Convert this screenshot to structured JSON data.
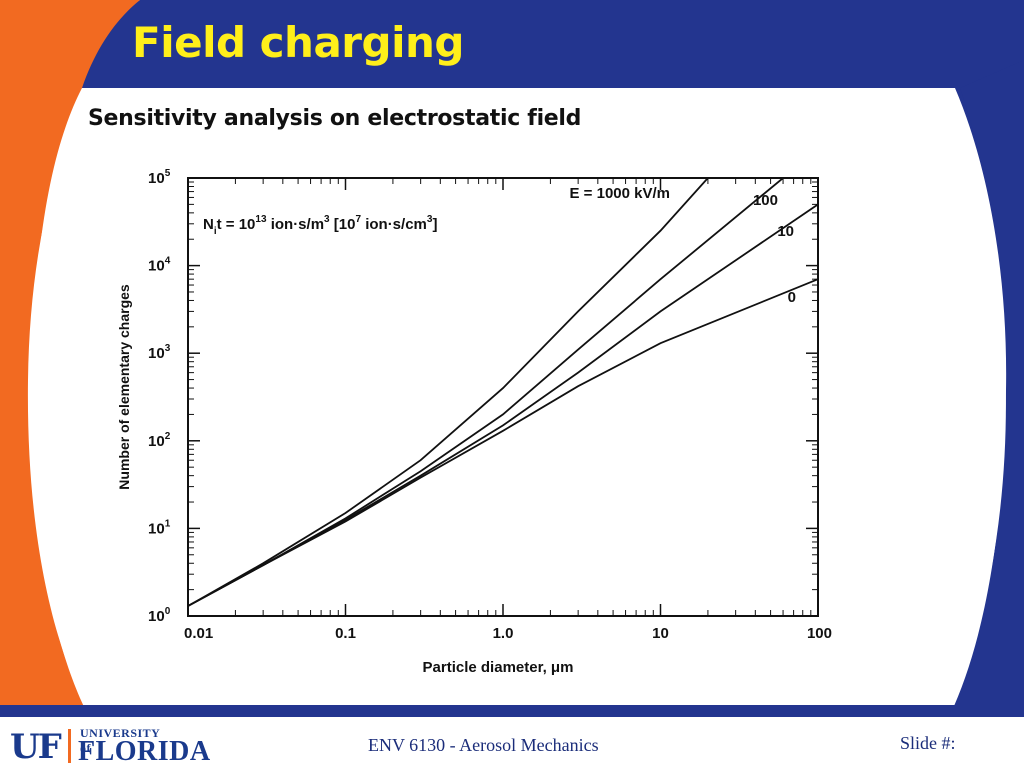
{
  "slide": {
    "title": "Field charging",
    "subtitle": "Sensitivity analysis on electrostatic field"
  },
  "footer": {
    "course": "ENV 6130 - Aerosol Mechanics",
    "slide_label": "Slide #:",
    "logo_uf": "UF",
    "logo_university": "UNIVERSITY of",
    "logo_florida": "FLORIDA"
  },
  "colors": {
    "header_blue": "#23358f",
    "title_yellow": "#ffef1a",
    "accent_orange": "#f26a21",
    "footer_blue": "#1b2d7a"
  },
  "chart_data": {
    "type": "line",
    "x_scale": "log",
    "y_scale": "log",
    "xlim": [
      0.01,
      100
    ],
    "ylim": [
      1,
      100000
    ],
    "x_ticks": [
      {
        "value": 0.01,
        "label": "0.01"
      },
      {
        "value": 0.1,
        "label": "0.1"
      },
      {
        "value": 1,
        "label": "1.0"
      },
      {
        "value": 10,
        "label": "10"
      },
      {
        "value": 100,
        "label": "100"
      }
    ],
    "y_ticks": [
      {
        "value": 1,
        "base": "10",
        "exp": "0"
      },
      {
        "value": 10,
        "base": "10",
        "exp": "1"
      },
      {
        "value": 100,
        "base": "10",
        "exp": "2"
      },
      {
        "value": 1000,
        "base": "10",
        "exp": "3"
      },
      {
        "value": 10000,
        "base": "10",
        "exp": "4"
      },
      {
        "value": 100000,
        "base": "10",
        "exp": "5"
      }
    ],
    "xlabel": "Particle diameter, μm",
    "ylabel": "Number of elementary charges",
    "annotation": {
      "pre": "N",
      "sub": "i",
      "mid": "t = 10",
      "sup1": "13",
      "mid2": " ion·s/m",
      "sup2": "3",
      "mid3": " [10",
      "sup3": "7",
      "mid4": " ion·s/cm",
      "sup4": "3",
      "post": "]"
    },
    "grid": false,
    "series": [
      {
        "name": "E = 1000 kV/m",
        "x": [
          0.01,
          0.03,
          0.1,
          0.3,
          1,
          3,
          10,
          20
        ],
        "y": [
          1.3,
          4,
          15,
          60,
          400,
          3000,
          25000,
          100000
        ]
      },
      {
        "name": "100",
        "x": [
          0.01,
          0.03,
          0.1,
          0.3,
          1,
          3,
          10,
          60
        ],
        "y": [
          1.3,
          3.8,
          13,
          45,
          200,
          1100,
          7000,
          100000
        ]
      },
      {
        "name": "10",
        "x": [
          0.01,
          0.03,
          0.1,
          0.3,
          1,
          3,
          10,
          100
        ],
        "y": [
          1.3,
          3.8,
          12.5,
          40,
          150,
          600,
          3000,
          50000
        ]
      },
      {
        "name": "0",
        "x": [
          0.01,
          0.03,
          0.1,
          0.3,
          1,
          3,
          10,
          100
        ],
        "y": [
          1.3,
          3.8,
          12,
          38,
          130,
          420,
          1300,
          7000
        ]
      }
    ]
  }
}
